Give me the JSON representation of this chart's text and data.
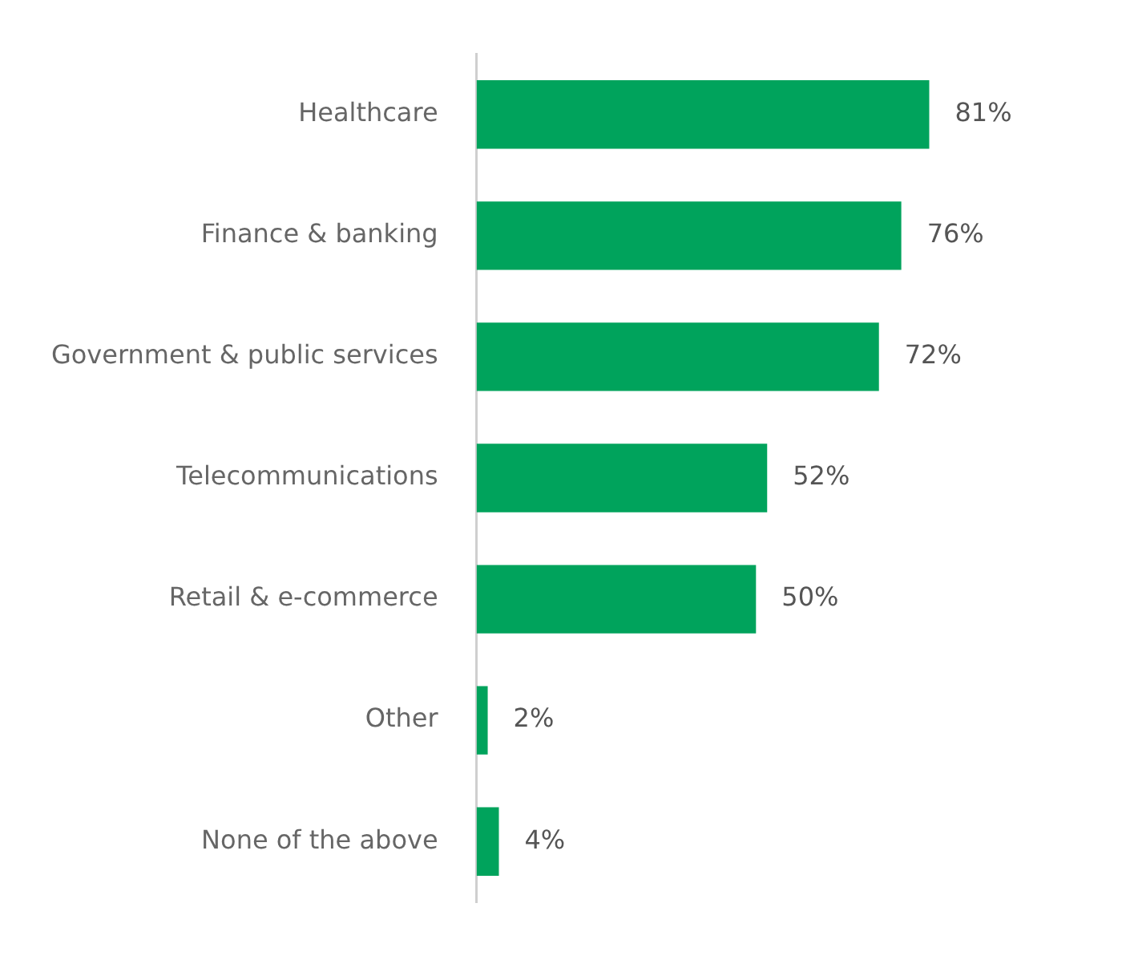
{
  "chart_data": {
    "type": "bar",
    "orientation": "horizontal",
    "categories": [
      "Healthcare",
      "Finance & banking",
      "Government & public services",
      "Telecommunications",
      "Retail & e-commerce",
      "Other",
      "None of the above"
    ],
    "values": [
      81,
      76,
      72,
      52,
      50,
      2,
      4
    ],
    "value_labels": [
      "81%",
      "76%",
      "72%",
      "52%",
      "50%",
      "2%",
      "4%"
    ],
    "color": "#00a35c"
  }
}
